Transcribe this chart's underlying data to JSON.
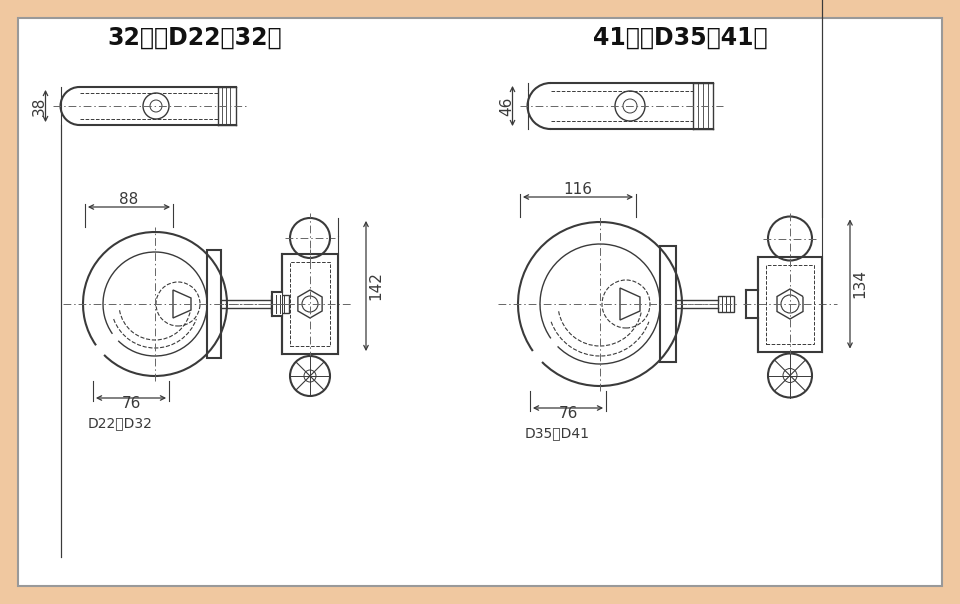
{
  "bg_color": "#f0c8a0",
  "panel_color": "#ffffff",
  "line_color": "#3a3a3a",
  "title_left": "32型（D22～32）",
  "title_right": "41型（D35～41）",
  "title_fontsize": 17,
  "dim_fontsize": 11,
  "label_fontsize": 10,
  "left": {
    "w_top": "88",
    "w_bot": "76",
    "h_side": "142",
    "h_bot": "38",
    "label": "D22～D32"
  },
  "right": {
    "w_top": "116",
    "w_bot": "76",
    "h_side": "134",
    "h_bot": "46",
    "label": "D35～D41"
  }
}
